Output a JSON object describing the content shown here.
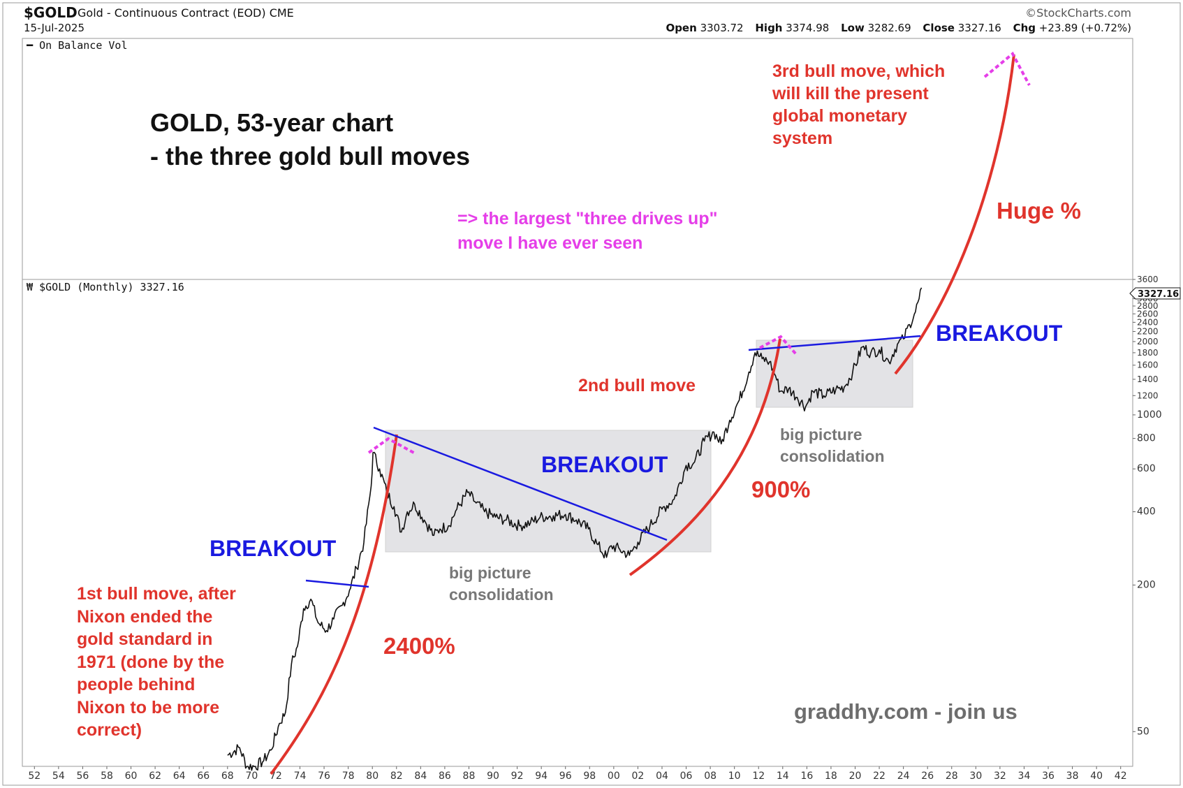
{
  "header": {
    "symbol": "$GOLD",
    "description": "Gold - Continuous Contract (EOD)",
    "exchange": "CME",
    "date": "15-Jul-2025",
    "brand": "©StockCharts.com",
    "open_label": "Open",
    "open": "3303.72",
    "high_label": "High",
    "high": "3374.98",
    "low_label": "Low",
    "low": "3282.69",
    "close_label": "Close",
    "close": "3327.16",
    "chg_label": "Chg",
    "chg": "+23.89 (+0.72%)"
  },
  "top_panel": {
    "label": "On Balance Vol"
  },
  "price_panel": {
    "label": "$GOLD (Monthly) 3327.16",
    "last_price_tag": "3327.16"
  },
  "annotations": {
    "title_line1": "GOLD, 53-year chart",
    "title_line2": "- the three gold bull moves",
    "three_drives": "=> the largest \"three drives up\"\nmove I have ever seen",
    "third_move": "3rd bull move, which\nwill kill the present\nglobal monetary\nsystem",
    "huge_pct": "Huge %",
    "breakout_1": "BREAKOUT",
    "breakout_2": "BREAKOUT",
    "breakout_3": "BREAKOUT",
    "second_move": "2nd bull move",
    "first_move": "1st bull move, after\nNixon ended the\ngold standard in\n1971 (done by the\npeople behind\nNixon to be more\ncorrect)",
    "pct_2400": "2400%",
    "pct_900": "900%",
    "consolidation_1": "big picture\nconsolidation",
    "consolidation_2": "big picture\nconsolidation",
    "watermark": "graddhy.com - join us"
  },
  "colors": {
    "price_line": "#111111",
    "trendline": "#1a1ae0",
    "bull_arc": "#e0342c",
    "top_marker": "#e53ee8",
    "consolidation_box": "#e3e3e6"
  },
  "chart_data": {
    "type": "line",
    "title": "$GOLD (Monthly)",
    "scale": "log",
    "xlim": [
      1951,
      2043
    ],
    "ylim": [
      36,
      3600
    ],
    "x_tick_labels": [
      "52",
      "54",
      "56",
      "58",
      "60",
      "62",
      "64",
      "66",
      "68",
      "70",
      "72",
      "74",
      "76",
      "78",
      "80",
      "82",
      "84",
      "86",
      "88",
      "90",
      "92",
      "94",
      "96",
      "98",
      "00",
      "02",
      "04",
      "06",
      "08",
      "10",
      "12",
      "14",
      "16",
      "18",
      "20",
      "22",
      "24",
      "26",
      "28",
      "30",
      "32",
      "34",
      "36",
      "38",
      "40",
      "42"
    ],
    "y_tick_labels": [
      "50",
      "200",
      "400",
      "600",
      "800",
      "1000",
      "1200",
      "1400",
      "1600",
      "1800",
      "2000",
      "2200",
      "2400",
      "2600",
      "2800",
      "3000",
      "3200",
      "3600"
    ],
    "grid": false,
    "series": [
      {
        "name": "$GOLD",
        "x": [
          1968.0,
          1969.0,
          1969.6,
          1970.3,
          1971.0,
          1971.6,
          1972.3,
          1972.8,
          1973.3,
          1973.8,
          1974.3,
          1974.9,
          1975.5,
          1976.2,
          1976.8,
          1977.5,
          1978.1,
          1978.7,
          1979.3,
          1979.9,
          1980.05,
          1980.6,
          1981.2,
          1981.8,
          1982.4,
          1982.9,
          1983.5,
          1984.3,
          1985.1,
          1985.6,
          1986.3,
          1987.0,
          1987.9,
          1988.5,
          1989.3,
          1990.2,
          1991.1,
          1992.2,
          1993.1,
          1993.9,
          1995.0,
          1996.0,
          1996.9,
          1997.9,
          1998.6,
          1999.4,
          1999.8,
          2000.5,
          2001.3,
          2002.0,
          2003.0,
          2004.0,
          2005.0,
          2006.0,
          2006.7,
          2007.5,
          2008.3,
          2008.9,
          2009.6,
          2010.4,
          2011.2,
          2011.7,
          2012.3,
          2012.9,
          2013.4,
          2013.8,
          2014.5,
          2015.2,
          2015.9,
          2016.5,
          2017.4,
          2018.4,
          2019.1,
          2019.8,
          2020.6,
          2021.3,
          2022.0,
          2022.8,
          2023.5,
          2024.0,
          2024.5,
          2025.0,
          2025.3,
          2025.5
        ],
        "values": [
          40,
          43,
          36,
          36,
          38,
          42,
          54,
          60,
          95,
          112,
          160,
          175,
          140,
          130,
          145,
          165,
          190,
          235,
          300,
          510,
          700,
          600,
          480,
          420,
          330,
          400,
          430,
          370,
          320,
          340,
          350,
          410,
          480,
          440,
          400,
          380,
          370,
          350,
          360,
          380,
          385,
          390,
          370,
          340,
          295,
          260,
          290,
          280,
          265,
          300,
          350,
          410,
          450,
          620,
          640,
          780,
          850,
          760,
          950,
          1150,
          1500,
          1800,
          1700,
          1650,
          1450,
          1250,
          1280,
          1180,
          1080,
          1250,
          1200,
          1270,
          1300,
          1500,
          1900,
          1800,
          1850,
          1650,
          1950,
          2050,
          2350,
          2650,
          3000,
          3327.16
        ]
      }
    ]
  }
}
